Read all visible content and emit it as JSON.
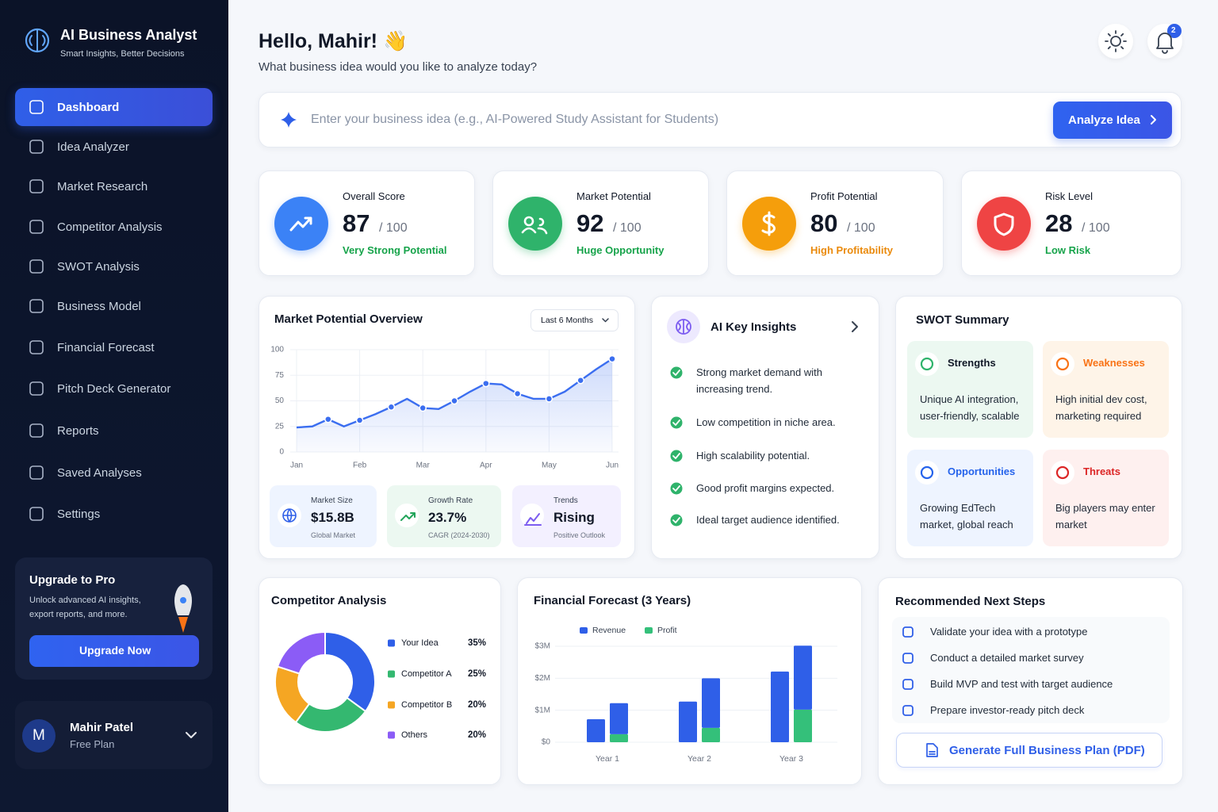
{
  "sidebar": {
    "title": "AI Business Analyst",
    "subtitle": "Smart Insights, Better Decisions",
    "nav": [
      "Dashboard",
      "Idea Analyzer",
      "Market Research",
      "Competitor Analysis",
      "SWOT Analysis",
      "Business Model",
      "Financial Forecast",
      "Pitch Deck Generator",
      "Reports",
      "Saved Analyses",
      "Settings"
    ],
    "active_index": 0,
    "upgrade": {
      "title": "Upgrade to Pro",
      "text": "Unlock advanced AI insights, export reports, and more.",
      "button": "Upgrade Now"
    },
    "user": {
      "initial": "M",
      "name": "Mahir Patel",
      "plan": "Free Plan"
    }
  },
  "header": {
    "greeting": "Hello, Mahir! 👋",
    "prompt": "What business idea would you like to analyze today?",
    "notifications": 2
  },
  "search": {
    "placeholder": "Enter your business idea (e.g., AI-Powered Study Assistant for Students)",
    "button": "Analyze Idea"
  },
  "scores": [
    {
      "label": "Overall Score",
      "score": 87,
      "max": "/ 100",
      "status": "Very Strong Potential",
      "color": "#3b82f6",
      "status_color": "#16a34a"
    },
    {
      "label": "Market Potential",
      "score": 92,
      "max": "/ 100",
      "status": "Huge Opportunity",
      "color": "#2fb36b",
      "status_color": "#16a34a"
    },
    {
      "label": "Profit Potential",
      "score": 80,
      "max": "/ 100",
      "status": "High Profitability",
      "color": "#f59e0b",
      "status_color": "#ea8a0c"
    },
    {
      "label": "Risk Level",
      "score": 28,
      "max": "/ 100",
      "status": "Low Risk",
      "color": "#ef4444",
      "status_color": "#16a34a"
    }
  ],
  "market_stats": [
    {
      "label": "Market Size",
      "value": "$15.8B",
      "note": "Global Market"
    },
    {
      "label": "Growth Rate",
      "value": "23.7%",
      "note": "CAGR (2024-2030)"
    },
    {
      "label": "Trends",
      "value": "Rising",
      "note": "Positive Outlook"
    }
  ],
  "insights": {
    "title": "AI Key Insights",
    "items": [
      "Strong market demand with increasing trend.",
      "Low competition in niche area.",
      "High scalability potential.",
      "Good profit margins expected.",
      "Ideal target audience identified."
    ]
  },
  "swot": {
    "title": "SWOT Summary",
    "items": [
      {
        "name": "Strengths",
        "text": "Unique AI integration, user-friendly, scalable",
        "color": "#111827"
      },
      {
        "name": "Weaknesses",
        "text": "High initial dev cost, marketing required",
        "color": "#f97316"
      },
      {
        "name": "Opportunities",
        "text": "Growing EdTech market, global reach",
        "color": "#2563eb"
      },
      {
        "name": "Threats",
        "text": "Big players may enter market",
        "color": "#dc2626"
      }
    ]
  },
  "next_steps": {
    "title": "Recommended Next Steps",
    "items": [
      "Validate your idea with a prototype",
      "Conduct a detailed market survey",
      "Build MVP and test with target audience",
      "Prepare investor-ready pitch deck"
    ],
    "button": "Generate Full Business Plan (PDF)"
  },
  "chart_data": [
    {
      "type": "line",
      "title": "Market Potential Overview",
      "range_filter": "Last 6 Months",
      "color": "#3b6ef0",
      "x": [
        0,
        1,
        2,
        3,
        4,
        5,
        6,
        7,
        8,
        9,
        10,
        11,
        12,
        13,
        14,
        15,
        16,
        17,
        18,
        19,
        20
      ],
      "values": [
        24,
        25,
        32,
        25,
        31,
        37,
        44,
        52,
        43,
        42,
        50,
        59,
        67,
        66,
        57,
        52,
        52,
        59,
        70,
        81,
        91
      ],
      "xlim": [
        0,
        20
      ],
      "xticks": [
        {
          "value": 0,
          "label": "Jan"
        },
        {
          "value": 4,
          "label": "Feb"
        },
        {
          "value": 8,
          "label": "Mar"
        },
        {
          "value": 12,
          "label": "Apr"
        },
        {
          "value": 16,
          "label": "May"
        },
        {
          "value": 20,
          "label": "Jun"
        }
      ],
      "ylim": [
        0,
        100
      ],
      "yticks": [
        0,
        25,
        50,
        75,
        100
      ],
      "grid": true
    },
    {
      "type": "pie",
      "title": "Competitor Analysis",
      "categories": [
        "Your Idea",
        "Competitor A",
        "Competitor B",
        "Others"
      ],
      "values": [
        35,
        25,
        20,
        20
      ],
      "value_labels": [
        "35%",
        "25%",
        "20%",
        "20%"
      ],
      "colors": [
        "#2f5fe8",
        "#34b870",
        "#f5a623",
        "#8b5cf6"
      ]
    },
    {
      "type": "bar",
      "title": "Financial Forecast (3 Years)",
      "categories": [
        "Year 1",
        "Year 2",
        "Year 3"
      ],
      "series": [
        {
          "name": "Revenue",
          "color": "#2f5fe8",
          "values": [
            0.72,
            1.27,
            2.21
          ]
        },
        {
          "name": "Profit",
          "color": "#34c07a",
          "values": [
            0.25,
            0.45,
            1.02
          ]
        },
        {
          "name": "Revenue",
          "color": "#2f5fe8",
          "values": [
            0.97,
            1.55,
            2.0
          ],
          "stack": true
        }
      ],
      "ylim": [
        0,
        3
      ],
      "yticks": [
        {
          "value": 0,
          "label": "$0"
        },
        {
          "value": 1,
          "label": "$1M"
        },
        {
          "value": 2,
          "label": "$2M"
        },
        {
          "value": 3,
          "label": "$3M"
        }
      ],
      "grid": true
    }
  ]
}
